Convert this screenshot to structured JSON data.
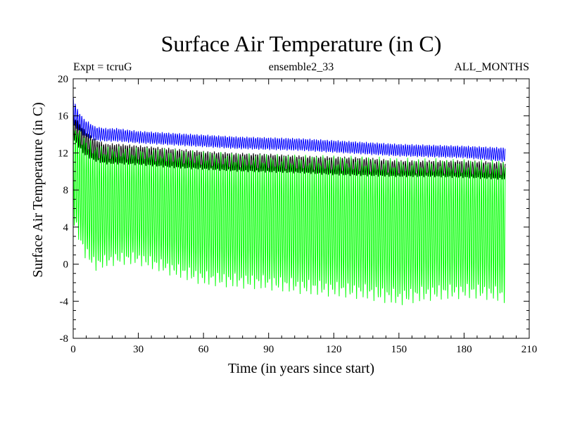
{
  "chart_data": {
    "type": "line",
    "title": "Surface Air Temperature (in C)",
    "subtitle_left": "Expt = tcruG",
    "subtitle_center": "ensemble2_33",
    "subtitle_right": "ALL_MONTHS",
    "xlabel": "Time (in years since start)",
    "ylabel": "Surface Air Temperature (in C)",
    "xlim": [
      0,
      210
    ],
    "ylim": [
      -8,
      20
    ],
    "x_ticks": [
      "0",
      "30",
      "60",
      "90",
      "120",
      "150",
      "180",
      "210"
    ],
    "y_ticks": [
      "-8",
      "-4",
      "0",
      "4",
      "8",
      "12",
      "16",
      "20"
    ],
    "x_tick_values": [
      0,
      30,
      60,
      90,
      120,
      150,
      180,
      210
    ],
    "y_tick_values": [
      -8,
      -4,
      0,
      4,
      8,
      12,
      16,
      20
    ],
    "grid": false,
    "legend": "none",
    "series": [
      {
        "color": "#0000ff",
        "x": [
          0,
          2,
          5,
          10,
          15,
          20,
          30,
          45,
          60,
          75,
          90,
          105,
          120,
          135,
          150,
          165,
          180,
          190,
          199
        ],
        "upper": [
          18.0,
          16.6,
          15.6,
          14.8,
          14.6,
          14.6,
          14.3,
          14.1,
          13.9,
          13.7,
          13.6,
          13.5,
          13.3,
          13.1,
          12.9,
          12.8,
          12.7,
          12.6,
          12.5
        ],
        "lower": [
          15.0,
          14.6,
          13.9,
          13.4,
          13.3,
          13.3,
          13.1,
          12.9,
          12.7,
          12.5,
          12.4,
          12.3,
          12.1,
          11.9,
          11.7,
          11.6,
          11.5,
          11.3,
          11.1
        ]
      },
      {
        "color": "#000000",
        "x": [
          0,
          2,
          5,
          10,
          15,
          20,
          30,
          45,
          60,
          75,
          90,
          105,
          120,
          135,
          150,
          165,
          180,
          190,
          199
        ],
        "upper": [
          16.0,
          15.4,
          14.4,
          13.4,
          12.9,
          12.9,
          12.7,
          12.4,
          12.1,
          11.9,
          11.8,
          11.6,
          11.5,
          11.4,
          11.1,
          11.1,
          11.1,
          11.0,
          10.9
        ],
        "lower": [
          13.5,
          12.9,
          11.9,
          11.2,
          10.9,
          10.9,
          10.8,
          10.5,
          10.3,
          10.1,
          10.0,
          9.9,
          9.7,
          9.6,
          9.5,
          9.5,
          9.4,
          9.3,
          9.2
        ]
      },
      {
        "color": "#00ff00",
        "x": [
          0,
          2,
          5,
          10,
          15,
          20,
          30,
          45,
          60,
          75,
          90,
          105,
          120,
          135,
          150,
          165,
          180,
          190,
          199
        ],
        "upper": [
          15.0,
          14.2,
          13.2,
          12.2,
          12.0,
          12.0,
          11.9,
          11.7,
          11.4,
          11.2,
          11.1,
          11.0,
          10.9,
          10.8,
          10.6,
          10.6,
          10.5,
          10.5,
          10.4
        ],
        "lower": [
          5.0,
          3.5,
          1.5,
          0.0,
          0.3,
          0.6,
          0.6,
          -0.5,
          -1.5,
          -1.8,
          -2.0,
          -2.4,
          -2.7,
          -3.0,
          -3.6,
          -3.1,
          -2.9,
          -3.0,
          -3.4
        ]
      }
    ]
  }
}
